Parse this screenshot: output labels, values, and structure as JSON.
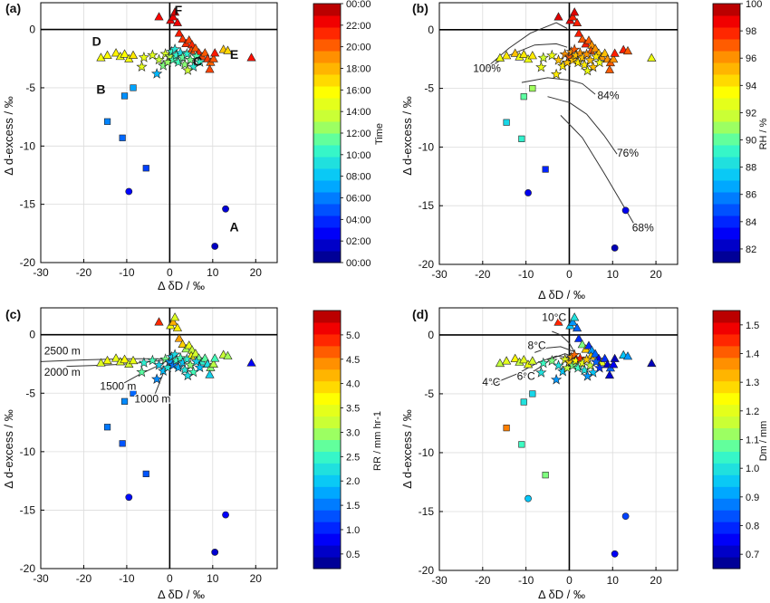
{
  "chart_data": [
    {
      "panel": "(a)",
      "type": "scatter",
      "xlabel": "Δ δD / ‰",
      "ylabel": "Δ d-excess / ‰",
      "xlim": [
        -30,
        25
      ],
      "ylim": [
        -20,
        2.3
      ],
      "xticks": [
        "-30",
        "-20",
        "-10",
        "0",
        "10",
        "20"
      ],
      "yticks": [
        "-20",
        "-15",
        "-10",
        "-5",
        "0"
      ],
      "grid": true,
      "colorbar": {
        "label": "Time",
        "ticks": [
          "00:00",
          "02:00",
          "04:00",
          "06:00",
          "08:00",
          "10:00",
          "12:00",
          "14:00",
          "16:00",
          "18:00",
          "20:00",
          "22:00",
          "00:00"
        ],
        "range": [
          0,
          24
        ]
      },
      "annotations": [
        {
          "text": "F",
          "x": 2,
          "y": 1.3
        },
        {
          "text": "D",
          "x": -17,
          "y": -1.4
        },
        {
          "text": "E",
          "x": 15,
          "y": -2.5
        },
        {
          "text": "C",
          "x": 6.5,
          "y": -3.1
        },
        {
          "text": "B",
          "x": -16,
          "y": -5.5
        },
        {
          "text": "A",
          "x": 15,
          "y": -17.3
        }
      ]
    },
    {
      "panel": "(b)",
      "type": "scatter",
      "xlabel": "Δ δD / ‰",
      "ylabel": "Δ d-excess / ‰",
      "xlim": [
        -30,
        25
      ],
      "ylim": [
        -20,
        2.3
      ],
      "xticks": [
        "-30",
        "-20",
        "-10",
        "0",
        "10",
        "20"
      ],
      "yticks": [
        "-20",
        "-15",
        "-10",
        "-5",
        "0"
      ],
      "grid": true,
      "colorbar": {
        "label": "RH / %",
        "ticks": [
          "82",
          "84",
          "86",
          "88",
          "90",
          "92",
          "94",
          "96",
          "98",
          "100"
        ],
        "range": [
          81,
          100
        ]
      },
      "curve_labels": [
        {
          "text": "100%",
          "x": -19,
          "y": -3.6
        },
        {
          "text": "84%",
          "x": 9,
          "y": -5.9
        },
        {
          "text": "76%",
          "x": 13.5,
          "y": -10.8
        },
        {
          "text": "68%",
          "x": 17,
          "y": -17.2
        }
      ]
    },
    {
      "panel": "(c)",
      "type": "scatter",
      "xlabel": "Δ δD / ‰",
      "ylabel": "Δ d-excess / ‰",
      "xlim": [
        -30,
        25
      ],
      "ylim": [
        -20,
        2.3
      ],
      "xticks": [
        "-30",
        "-20",
        "-10",
        "0",
        "10",
        "20"
      ],
      "yticks": [
        "-20",
        "-15",
        "-10",
        "-5",
        "0"
      ],
      "grid": true,
      "colorbar": {
        "label": "RR / mm hr-1",
        "ticks": [
          "0.5",
          "1.0",
          "1.5",
          "2.0",
          "2.5",
          "3.0",
          "3.5",
          "4.0",
          "4.5",
          "5.0"
        ],
        "range": [
          0.2,
          5.5
        ]
      },
      "curve_labels": [
        {
          "text": "2500 m",
          "x": -25,
          "y": -1.7
        },
        {
          "text": "2000 m",
          "x": -25,
          "y": -3.5
        },
        {
          "text": "1500 m",
          "x": -12,
          "y": -4.7
        },
        {
          "text": "1000 m",
          "x": -4,
          "y": -5.8
        }
      ]
    },
    {
      "panel": "(d)",
      "type": "scatter",
      "xlabel": "Δ δD / ‰",
      "ylabel": "Δ d-excess / ‰",
      "xlim": [
        -30,
        25
      ],
      "ylim": [
        -20,
        2.3
      ],
      "xticks": [
        "-30",
        "-20",
        "-10",
        "0",
        "10",
        "20"
      ],
      "yticks": [
        "-20",
        "-15",
        "-10",
        "-5",
        "0"
      ],
      "grid": true,
      "colorbar": {
        "label": "Dm / mm",
        "ticks": [
          "0.7",
          "0.8",
          "0.9",
          "1.0",
          "1.1",
          "1.2",
          "1.3",
          "1.4",
          "1.5"
        ],
        "range": [
          0.65,
          1.55
        ]
      },
      "curve_labels": [
        {
          "text": "10°C",
          "x": -3.5,
          "y": 1.2
        },
        {
          "text": "8°C",
          "x": -7.5,
          "y": -1.2
        },
        {
          "text": "6°C",
          "x": -10,
          "y": -3.8
        },
        {
          "text": "4°C",
          "x": -18,
          "y": -4.3
        }
      ]
    }
  ],
  "points": [
    {
      "x": -2.5,
      "y": 1.1,
      "m": "tri",
      "t": 22,
      "rh": 99,
      "rr": 4.9,
      "dm": 1.45
    },
    {
      "x": 0.2,
      "y": 0.8,
      "m": "tri",
      "t": 22.5,
      "rh": 99,
      "rr": 3.6,
      "dm": 0.95
    },
    {
      "x": 0.8,
      "y": 1.1,
      "m": "tri",
      "t": 22.3,
      "rh": 98,
      "rr": 4.2,
      "dm": 0.9
    },
    {
      "x": 1.2,
      "y": 1.5,
      "m": "tri",
      "t": 22.8,
      "rh": 99,
      "rr": 3.4,
      "dm": 1.0
    },
    {
      "x": 1.8,
      "y": 0.6,
      "m": "tri",
      "t": 22.4,
      "rh": 98,
      "rr": 3.8,
      "dm": 0.85
    },
    {
      "x": 2.2,
      "y": -0.3,
      "m": "tri",
      "t": 21.5,
      "rh": 98,
      "rr": 4.3,
      "dm": 0.8
    },
    {
      "x": 3.0,
      "y": -0.8,
      "m": "tri",
      "t": 21.0,
      "rh": 97,
      "rr": 4.0,
      "dm": 1.1
    },
    {
      "x": 3.8,
      "y": -1.2,
      "m": "tri",
      "t": 21.2,
      "rh": 98,
      "rr": 3.0,
      "dm": 1.3
    },
    {
      "x": 4.5,
      "y": -0.9,
      "m": "tri",
      "t": 20.8,
      "rh": 97,
      "rr": 3.5,
      "dm": 0.8
    },
    {
      "x": 5.2,
      "y": -1.3,
      "m": "tri",
      "t": 21.3,
      "rh": 96,
      "rr": 3.2,
      "dm": 0.9
    },
    {
      "x": 5.0,
      "y": -1.8,
      "m": "tri",
      "t": 20.5,
      "rh": 97,
      "rr": 3.6,
      "dm": 1.3
    },
    {
      "x": 6.0,
      "y": -1.6,
      "m": "tri",
      "t": 20.3,
      "rh": 96,
      "rr": 3.3,
      "dm": 0.85
    },
    {
      "x": 6.8,
      "y": -2.0,
      "m": "tri",
      "t": 21.4,
      "rh": 95,
      "rr": 2.8,
      "dm": 0.75
    },
    {
      "x": 7.5,
      "y": -2.3,
      "m": "tri",
      "t": 20.6,
      "rh": 96,
      "rr": 2.4,
      "dm": 1.2
    },
    {
      "x": 8.2,
      "y": -2.0,
      "m": "tri",
      "t": 20.2,
      "rh": 95,
      "rr": 2.7,
      "dm": 0.8
    },
    {
      "x": 8.8,
      "y": -2.5,
      "m": "tri",
      "t": 20.9,
      "rh": 96,
      "rr": 2.2,
      "dm": 0.72
    },
    {
      "x": 9.5,
      "y": -2.8,
      "m": "tri",
      "t": 20.1,
      "rh": 97,
      "rr": 2.9,
      "dm": 0.85
    },
    {
      "x": 10.2,
      "y": -2.5,
      "m": "tri",
      "t": 20.4,
      "rh": 96,
      "rr": 3.1,
      "dm": 0.75
    },
    {
      "x": 9.3,
      "y": -3.4,
      "m": "tri",
      "t": 20.7,
      "rh": 97,
      "rr": 2.1,
      "dm": 0.72
    },
    {
      "x": 10.5,
      "y": -2.0,
      "m": "tri",
      "t": 21.6,
      "rh": 98,
      "rr": 2.6,
      "dm": 0.7
    },
    {
      "x": 12.5,
      "y": -1.7,
      "m": "tri",
      "t": 17.5,
      "rh": 98,
      "rr": 3.2,
      "dm": 0.95
    },
    {
      "x": 13.5,
      "y": -1.8,
      "m": "tri",
      "t": 17.0,
      "rh": 97,
      "rr": 3.0,
      "dm": 0.9
    },
    {
      "x": 19.0,
      "y": -2.4,
      "m": "tri",
      "t": 21.8,
      "rh": 93,
      "rr": 0.8,
      "dm": 0.7
    },
    {
      "x": -16,
      "y": -2.4,
      "m": "tri",
      "t": 15.5,
      "rh": 93,
      "rr": 3.4,
      "dm": 1.15
    },
    {
      "x": -14.5,
      "y": -2.2,
      "m": "tri",
      "t": 15.8,
      "rh": 94,
      "rr": 3.6,
      "dm": 1.2
    },
    {
      "x": -12.5,
      "y": -2.0,
      "m": "tri",
      "t": 16.2,
      "rh": 95,
      "rr": 3.5,
      "dm": 1.25
    },
    {
      "x": -11.5,
      "y": -2.3,
      "m": "tri",
      "t": 15.2,
      "rh": 93,
      "rr": 3.4,
      "dm": 1.15
    },
    {
      "x": -10.5,
      "y": -2.1,
      "m": "tri",
      "t": 15.9,
      "rh": 94,
      "rr": 3.7,
      "dm": 1.2
    },
    {
      "x": -9.5,
      "y": -2.5,
      "m": "tri",
      "t": 15.4,
      "rh": 93,
      "rr": 3.3,
      "dm": 1.22
    },
    {
      "x": -8.5,
      "y": -2.2,
      "m": "tri",
      "t": 16.5,
      "rh": 94,
      "rr": 3.5,
      "dm": 1.18
    },
    {
      "x": -6,
      "y": -2.4,
      "m": "star",
      "t": 15.0,
      "rh": 92,
      "rr": 2.4,
      "dm": 1.05
    },
    {
      "x": -4,
      "y": -2.2,
      "m": "star",
      "t": 14.6,
      "rh": 93,
      "rr": 2.6,
      "dm": 1.1
    },
    {
      "x": -2.5,
      "y": -2.6,
      "m": "star",
      "t": 13.5,
      "rh": 95,
      "rr": 2.1,
      "dm": 1.0
    },
    {
      "x": -1.5,
      "y": -3.1,
      "m": "star",
      "t": 12.0,
      "rh": 94,
      "rr": 1.9,
      "dm": 0.95
    },
    {
      "x": -1.0,
      "y": -2.1,
      "m": "star",
      "t": 14.2,
      "rh": 96,
      "rr": 2.8,
      "dm": 1.2
    },
    {
      "x": -0.5,
      "y": -2.8,
      "m": "star",
      "t": 12.5,
      "rh": 95,
      "rr": 2.3,
      "dm": 1.15
    },
    {
      "x": 0.0,
      "y": -2.3,
      "m": "star",
      "t": 13.0,
      "rh": 97,
      "rr": 1.7,
      "dm": 1.3
    },
    {
      "x": 0.5,
      "y": -1.9,
      "m": "star",
      "t": 10.5,
      "rh": 96,
      "rr": 2.0,
      "dm": 1.35
    },
    {
      "x": 0.8,
      "y": -2.6,
      "m": "star",
      "t": 11.0,
      "rh": 95,
      "rr": 1.5,
      "dm": 1.1
    },
    {
      "x": 1.2,
      "y": -1.7,
      "m": "star",
      "t": 9.5,
      "rh": 97,
      "rr": 2.2,
      "dm": 1.4
    },
    {
      "x": 1.5,
      "y": -2.2,
      "m": "star",
      "t": 10.2,
      "rh": 95,
      "rr": 2.5,
      "dm": 1.25
    },
    {
      "x": 2.0,
      "y": -2.8,
      "m": "star",
      "t": 10.8,
      "rh": 94,
      "rr": 1.8,
      "dm": 1.05
    },
    {
      "x": 2.5,
      "y": -2.0,
      "m": "star",
      "t": 9.0,
      "rh": 96,
      "rr": 2.6,
      "dm": 1.45
    },
    {
      "x": 3.0,
      "y": -2.4,
      "m": "star",
      "t": 11.5,
      "rh": 95,
      "rr": 2.0,
      "dm": 1.2
    },
    {
      "x": 3.5,
      "y": -3.0,
      "m": "star",
      "t": 12.2,
      "rh": 94,
      "rr": 2.3,
      "dm": 1.0
    },
    {
      "x": 4.0,
      "y": -2.1,
      "m": "star",
      "t": 10.0,
      "rh": 96,
      "rr": 2.4,
      "dm": 1.3
    },
    {
      "x": 4.8,
      "y": -2.6,
      "m": "star",
      "t": 11.8,
      "rh": 95,
      "rr": 2.9,
      "dm": 1.15
    },
    {
      "x": 5.5,
      "y": -3.2,
      "m": "star",
      "t": 9.8,
      "rh": 95,
      "rr": 2.6,
      "dm": 0.95
    },
    {
      "x": 6.2,
      "y": -2.3,
      "m": "star",
      "t": 11.2,
      "rh": 94,
      "rr": 2.1,
      "dm": 0.85
    },
    {
      "x": 7.0,
      "y": -2.8,
      "m": "star",
      "t": 10.4,
      "rh": 93,
      "rr": 1.9,
      "dm": 0.8
    },
    {
      "x": 4.2,
      "y": -3.5,
      "m": "star",
      "t": 13.8,
      "rh": 93,
      "rr": 2.2,
      "dm": 0.9
    },
    {
      "x": -3.0,
      "y": -3.8,
      "m": "star",
      "t": 7.5,
      "rh": 94,
      "rr": 1.6,
      "dm": 0.9
    },
    {
      "x": -6.5,
      "y": -3.2,
      "m": "star",
      "t": 14.8,
      "rh": 93,
      "rr": 2.7,
      "dm": 1.0
    },
    {
      "x": -8.5,
      "y": -5.0,
      "m": "sq",
      "t": 7.0,
      "rh": 91,
      "rr": 1.4,
      "dm": 0.98
    },
    {
      "x": -10.5,
      "y": -5.7,
      "m": "sq",
      "t": 6.5,
      "rh": 90,
      "rr": 1.6,
      "dm": 1.0
    },
    {
      "x": -14.5,
      "y": -7.9,
      "m": "sq",
      "t": 6.2,
      "rh": 88,
      "rr": 1.5,
      "dm": 1.38
    },
    {
      "x": -11.0,
      "y": -9.3,
      "m": "sq",
      "t": 5.5,
      "rh": 89,
      "rr": 1.3,
      "dm": 1.05
    },
    {
      "x": -5.5,
      "y": -11.9,
      "m": "sq",
      "t": 4.5,
      "rh": 84,
      "rr": 1.3,
      "dm": 1.1
    },
    {
      "x": -9.5,
      "y": -13.9,
      "m": "circ",
      "t": 3.0,
      "rh": 83,
      "rr": 0.9,
      "dm": 0.95
    },
    {
      "x": 13.0,
      "y": -15.4,
      "m": "circ",
      "t": 2.0,
      "rh": 83,
      "rr": 0.8,
      "dm": 0.82
    },
    {
      "x": 10.5,
      "y": -18.6,
      "m": "circ",
      "t": 1.5,
      "rh": 82,
      "rr": 0.6,
      "dm": 0.75
    }
  ],
  "curves_b": [
    [
      [
        -19,
        -3.2
      ],
      [
        -14,
        -1.6
      ],
      [
        -9,
        -0.3
      ],
      [
        -3,
        0.6
      ],
      [
        -0.5,
        0.1
      ]
    ],
    [
      [
        -19.5,
        -3.4
      ],
      [
        -14,
        -2.2
      ],
      [
        -8,
        -1.3
      ],
      [
        -3,
        -1.2
      ],
      [
        -0.5,
        -1.5
      ]
    ],
    [
      [
        -11,
        -4.5
      ],
      [
        -5,
        -4.1
      ],
      [
        0,
        -4.3
      ],
      [
        3,
        -4.6
      ],
      [
        6,
        -5.5
      ]
    ],
    [
      [
        -5,
        -5.7
      ],
      [
        0,
        -6.2
      ],
      [
        4,
        -7.2
      ],
      [
        8,
        -9.0
      ],
      [
        11,
        -10.6
      ]
    ],
    [
      [
        -2,
        -7.3
      ],
      [
        3,
        -9.2
      ],
      [
        8,
        -12.2
      ],
      [
        12,
        -14.7
      ],
      [
        15,
        -16.6
      ]
    ]
  ],
  "curves_c": [
    [
      [
        -30,
        -2.3
      ],
      [
        -20,
        -2.15
      ],
      [
        -10,
        -2.05
      ],
      [
        -3,
        -2.05
      ],
      [
        0,
        -2.1
      ]
    ],
    [
      [
        -24,
        -2.7
      ],
      [
        -15,
        -2.6
      ],
      [
        -8,
        -2.45
      ],
      [
        -2,
        -2.2
      ],
      [
        0,
        -2.1
      ]
    ],
    [
      [
        -11,
        -4.2
      ],
      [
        -7,
        -3.4
      ],
      [
        -3,
        -2.7
      ],
      [
        -1,
        -2.3
      ],
      [
        0,
        -2.1
      ]
    ],
    [
      [
        -4,
        -5.6
      ],
      [
        -2.8,
        -4.5
      ],
      [
        -1.5,
        -3.3
      ],
      [
        -0.5,
        -2.6
      ],
      [
        0,
        -2.1
      ]
    ]
  ],
  "curves_d": [
    [
      [
        -4,
        0.3
      ],
      [
        -2,
        0.0
      ],
      [
        0,
        -0.7
      ],
      [
        2,
        -2.0
      ]
    ],
    [
      [
        -8,
        -1.5
      ],
      [
        -5,
        -1.1
      ],
      [
        -2,
        -1.0
      ],
      [
        1,
        -1.4
      ],
      [
        2,
        -2.0
      ]
    ],
    [
      [
        -11,
        -3.7
      ],
      [
        -7,
        -2.8
      ],
      [
        -4,
        -2.0
      ],
      [
        -1,
        -1.6
      ],
      [
        2,
        -2.0
      ]
    ],
    [
      [
        -18,
        -4.2
      ],
      [
        -12,
        -3.3
      ],
      [
        -7,
        -2.3
      ],
      [
        -3,
        -1.8
      ],
      [
        2,
        -2.0
      ]
    ]
  ]
}
